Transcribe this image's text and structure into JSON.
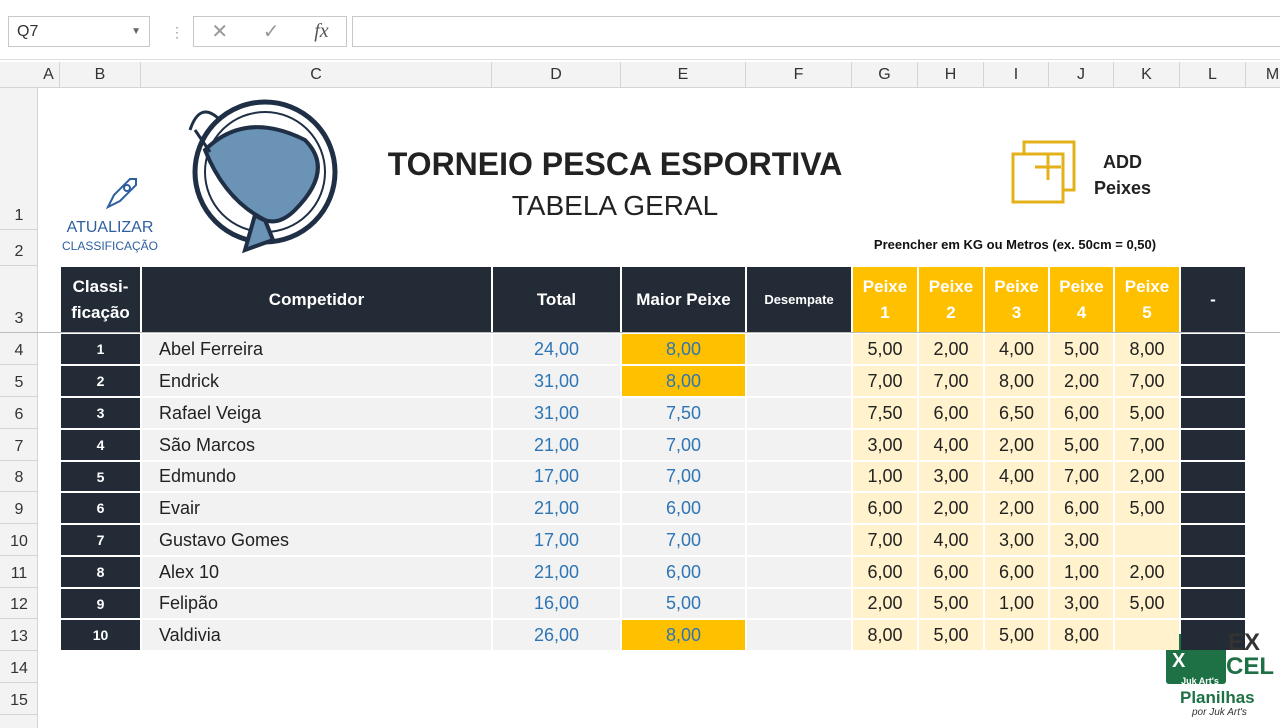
{
  "name_box": "Q7",
  "formula_label": "fx",
  "columns": [
    "A",
    "B",
    "C",
    "D",
    "E",
    "F",
    "G",
    "H",
    "I",
    "J",
    "K",
    "L",
    "M"
  ],
  "rows": [
    1,
    2,
    3,
    4,
    5,
    6,
    7,
    8,
    9,
    10,
    11,
    12,
    13,
    14,
    15
  ],
  "header": {
    "title": "TORNEIO PESCA ESPORTIVA",
    "subtitle": "TABELA GERAL",
    "update_button": [
      "ATUALIZAR",
      "CLASSIFICAÇÃO"
    ],
    "add_button": [
      "ADD",
      "Peixes"
    ],
    "note": "Preencher em KG ou Metros (ex. 50cm = 0,50)"
  },
  "table": {
    "headers": [
      [
        "Classi-",
        "ficação"
      ],
      [
        "Competidor"
      ],
      [
        "Total"
      ],
      [
        "Maior Peixe"
      ],
      [
        "Desempate"
      ],
      [
        "Peixe",
        "1"
      ],
      [
        "Peixe",
        "2"
      ],
      [
        "Peixe",
        "3"
      ],
      [
        "Peixe",
        "4"
      ],
      [
        "Peixe",
        "5"
      ],
      [
        "-"
      ]
    ],
    "rows": [
      {
        "rank": 1,
        "name": "Abel Ferreira",
        "total": "24,00",
        "maior": "8,00",
        "highlight": true,
        "peixes": [
          "5,00",
          "2,00",
          "4,00",
          "5,00",
          "8,00"
        ]
      },
      {
        "rank": 2,
        "name": "Endrick",
        "total": "31,00",
        "maior": "8,00",
        "highlight": true,
        "peixes": [
          "7,00",
          "7,00",
          "8,00",
          "2,00",
          "7,00"
        ]
      },
      {
        "rank": 3,
        "name": "Rafael Veiga",
        "total": "31,00",
        "maior": "7,50",
        "highlight": false,
        "peixes": [
          "7,50",
          "6,00",
          "6,50",
          "6,00",
          "5,00"
        ]
      },
      {
        "rank": 4,
        "name": "São Marcos",
        "total": "21,00",
        "maior": "7,00",
        "highlight": false,
        "peixes": [
          "3,00",
          "4,00",
          "2,00",
          "5,00",
          "7,00"
        ]
      },
      {
        "rank": 5,
        "name": "Edmundo",
        "total": "17,00",
        "maior": "7,00",
        "highlight": false,
        "peixes": [
          "1,00",
          "3,00",
          "4,00",
          "7,00",
          "2,00"
        ]
      },
      {
        "rank": 6,
        "name": "Evair",
        "total": "21,00",
        "maior": "6,00",
        "highlight": false,
        "peixes": [
          "6,00",
          "2,00",
          "2,00",
          "6,00",
          "5,00"
        ]
      },
      {
        "rank": 7,
        "name": "Gustavo Gomes",
        "total": "17,00",
        "maior": "7,00",
        "highlight": false,
        "peixes": [
          "7,00",
          "4,00",
          "3,00",
          "3,00",
          null
        ]
      },
      {
        "rank": 8,
        "name": "Alex 10",
        "total": "21,00",
        "maior": "6,00",
        "highlight": false,
        "peixes": [
          "6,00",
          "6,00",
          "6,00",
          "1,00",
          "2,00"
        ]
      },
      {
        "rank": 9,
        "name": "Felipão",
        "total": "16,00",
        "maior": "5,00",
        "highlight": false,
        "peixes": [
          "2,00",
          "5,00",
          "1,00",
          "3,00",
          "5,00"
        ]
      },
      {
        "rank": 10,
        "name": "Valdivia",
        "total": "26,00",
        "maior": "8,00",
        "highlight": true,
        "peixes": [
          "8,00",
          "5,00",
          "5,00",
          "8,00",
          null
        ]
      }
    ]
  },
  "watermark": {
    "badge": "Juk Art's",
    "line1": "EX",
    "line2": "CEL",
    "brand": "Planilhas",
    "by": "por Juk Art's"
  }
}
